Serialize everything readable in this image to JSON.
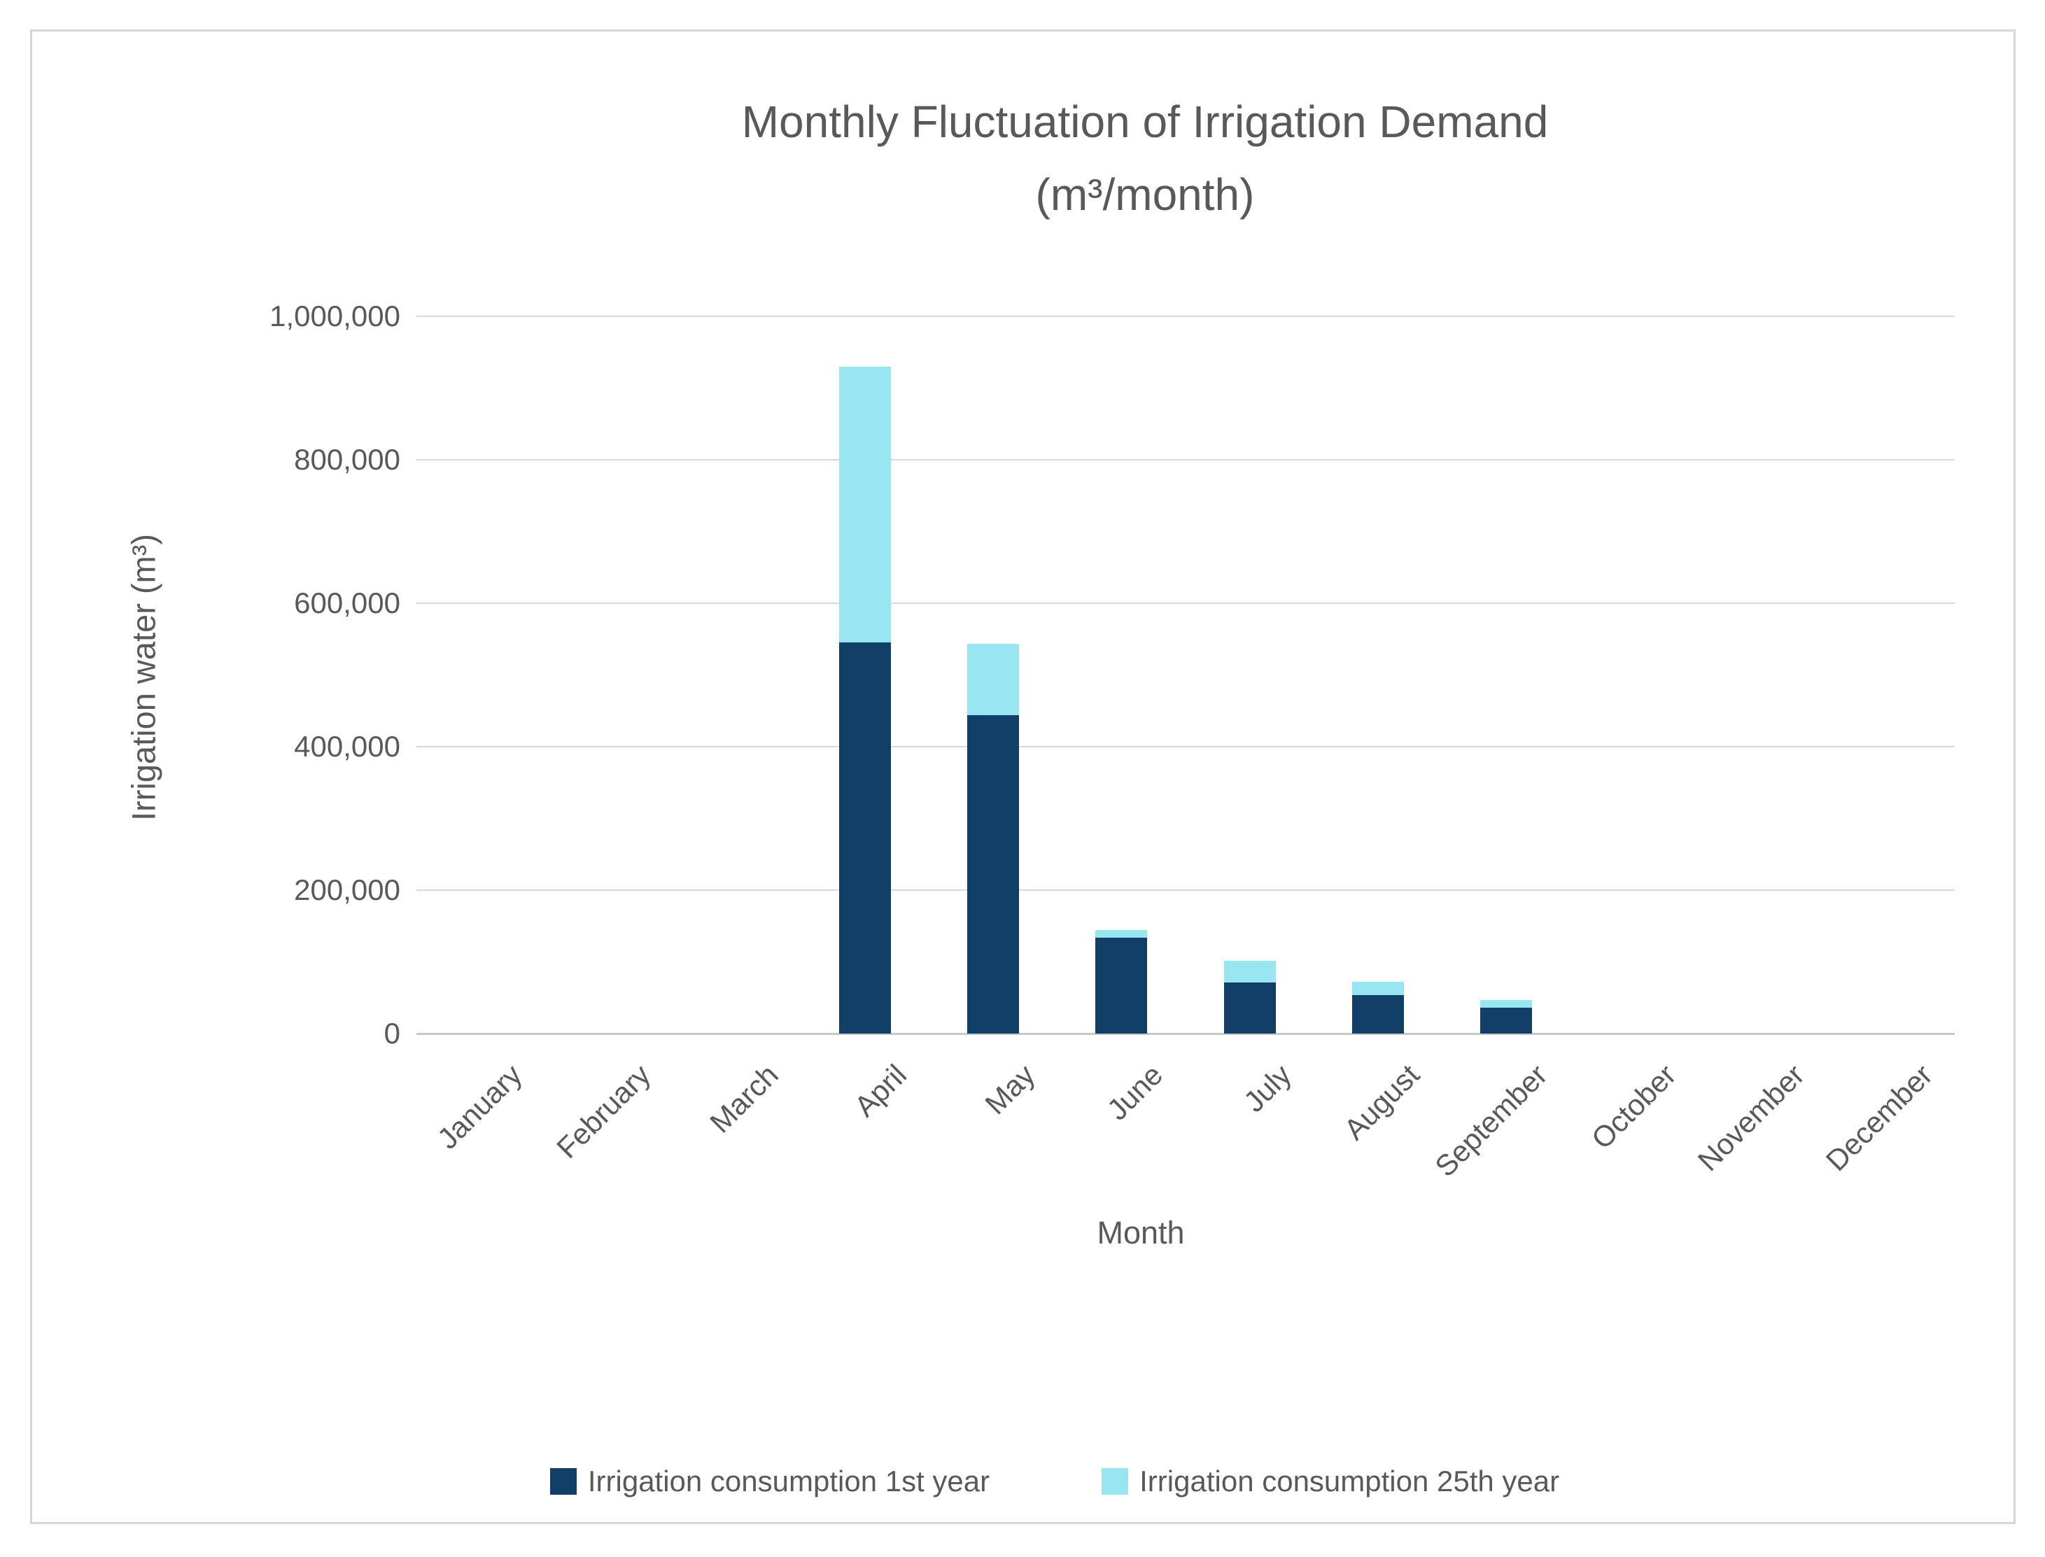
{
  "chart": {
    "title_line1": "Monthly Fluctuation of Irrigation Demand",
    "title_line2": "(m³/month)"
  },
  "chart_data": {
    "type": "bar",
    "stacked": true,
    "title": "Monthly Fluctuation of Irrigation Demand (m³/month)",
    "xlabel": "Month",
    "ylabel": "Irrigation water (m³)",
    "ylim": [
      0,
      1000000
    ],
    "ytick_interval": 200000,
    "ytick_labels": [
      "0",
      "200,000",
      "400,000",
      "600,000",
      "800,000",
      "1,000,000"
    ],
    "grid": true,
    "legend_position": "bottom",
    "categories": [
      "January",
      "February",
      "March",
      "April",
      "May",
      "June",
      "July",
      "August",
      "September",
      "October",
      "November",
      "December"
    ],
    "series": [
      {
        "name": "Irrigation consumption 1st year",
        "color": "#123F68",
        "values": [
          0,
          0,
          0,
          545000,
          444000,
          134000,
          71000,
          54000,
          36000,
          0,
          0,
          0
        ]
      },
      {
        "name": "Irrigation consumption 25th year",
        "color": "#99E6F3",
        "values": [
          0,
          0,
          0,
          385000,
          99000,
          10000,
          30000,
          18000,
          11000,
          0,
          0,
          0
        ]
      }
    ]
  },
  "colors": {
    "text": "#595959",
    "gridline": "#D9D9D9",
    "axis_line": "#C9C9C9",
    "frame_border": "#D6D6D6",
    "series_1st_year": "#123F68",
    "series_25th_year": "#99E6F3"
  }
}
